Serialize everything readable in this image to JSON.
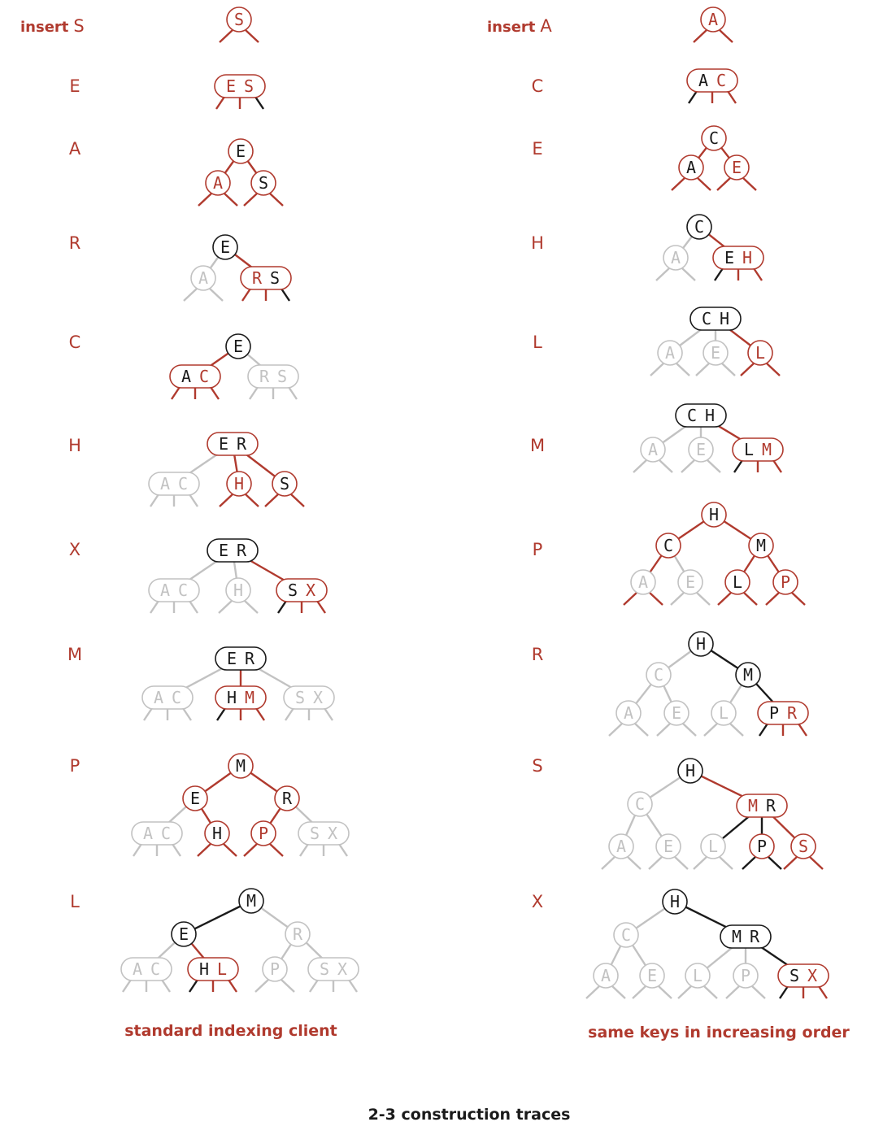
{
  "colors": {
    "red": "#b03a2e",
    "black": "#1a1a1a",
    "gray": "#c2c2c2",
    "caption_left": "#b03a2e",
    "caption_right": "#b03a2e",
    "title": "#1a1a1a"
  },
  "left_column": {
    "steps": [
      {
        "label_prefix": "insert",
        "key": "S"
      },
      {
        "key": "E"
      },
      {
        "key": "A"
      },
      {
        "key": "R"
      },
      {
        "key": "C"
      },
      {
        "key": "H"
      },
      {
        "key": "X"
      },
      {
        "key": "M"
      },
      {
        "key": "P"
      },
      {
        "key": "L"
      }
    ],
    "caption": "standard indexing client"
  },
  "right_column": {
    "steps": [
      {
        "label_prefix": "insert",
        "key": "A"
      },
      {
        "key": "C"
      },
      {
        "key": "E"
      },
      {
        "key": "H"
      },
      {
        "key": "L"
      },
      {
        "key": "M"
      },
      {
        "key": "P"
      },
      {
        "key": "R"
      },
      {
        "key": "S"
      },
      {
        "key": "X"
      }
    ],
    "caption": "same keys in increasing order"
  },
  "title": "2-3 construction traces"
}
